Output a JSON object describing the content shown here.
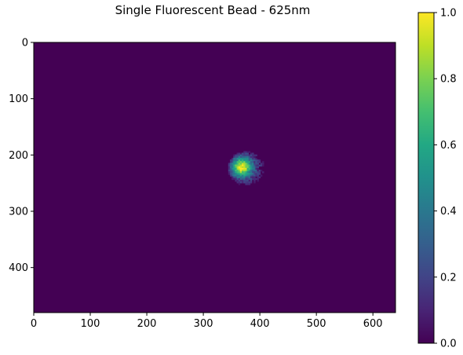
{
  "chart_data": {
    "type": "heatmap",
    "title": "Single Fluorescent Bead - 625nm",
    "xlabel": "",
    "ylabel": "",
    "image_size": {
      "width": 640,
      "height": 480
    },
    "xlim": [
      0,
      640
    ],
    "ylim": [
      480,
      0
    ],
    "x_ticks": [
      0,
      100,
      200,
      300,
      400,
      500,
      600
    ],
    "y_ticks": [
      0,
      100,
      200,
      300,
      400
    ],
    "colormap": "viridis",
    "colorbar": {
      "range": [
        0.0,
        1.0
      ],
      "ticks": [
        "0.0",
        "0.2",
        "0.4",
        "0.6",
        "0.8",
        "1.0"
      ],
      "placement": "right"
    },
    "background_value": 0.0,
    "bead": {
      "center_x": 375,
      "center_y": 222,
      "radius_x": 33,
      "radius_y": 31,
      "peak_value": 0.85,
      "peak_x": 366,
      "peak_y": 220
    },
    "colors": {
      "viridis_low": "#440154",
      "viridis_mid": "#21918c",
      "viridis_high": "#fde725"
    }
  }
}
